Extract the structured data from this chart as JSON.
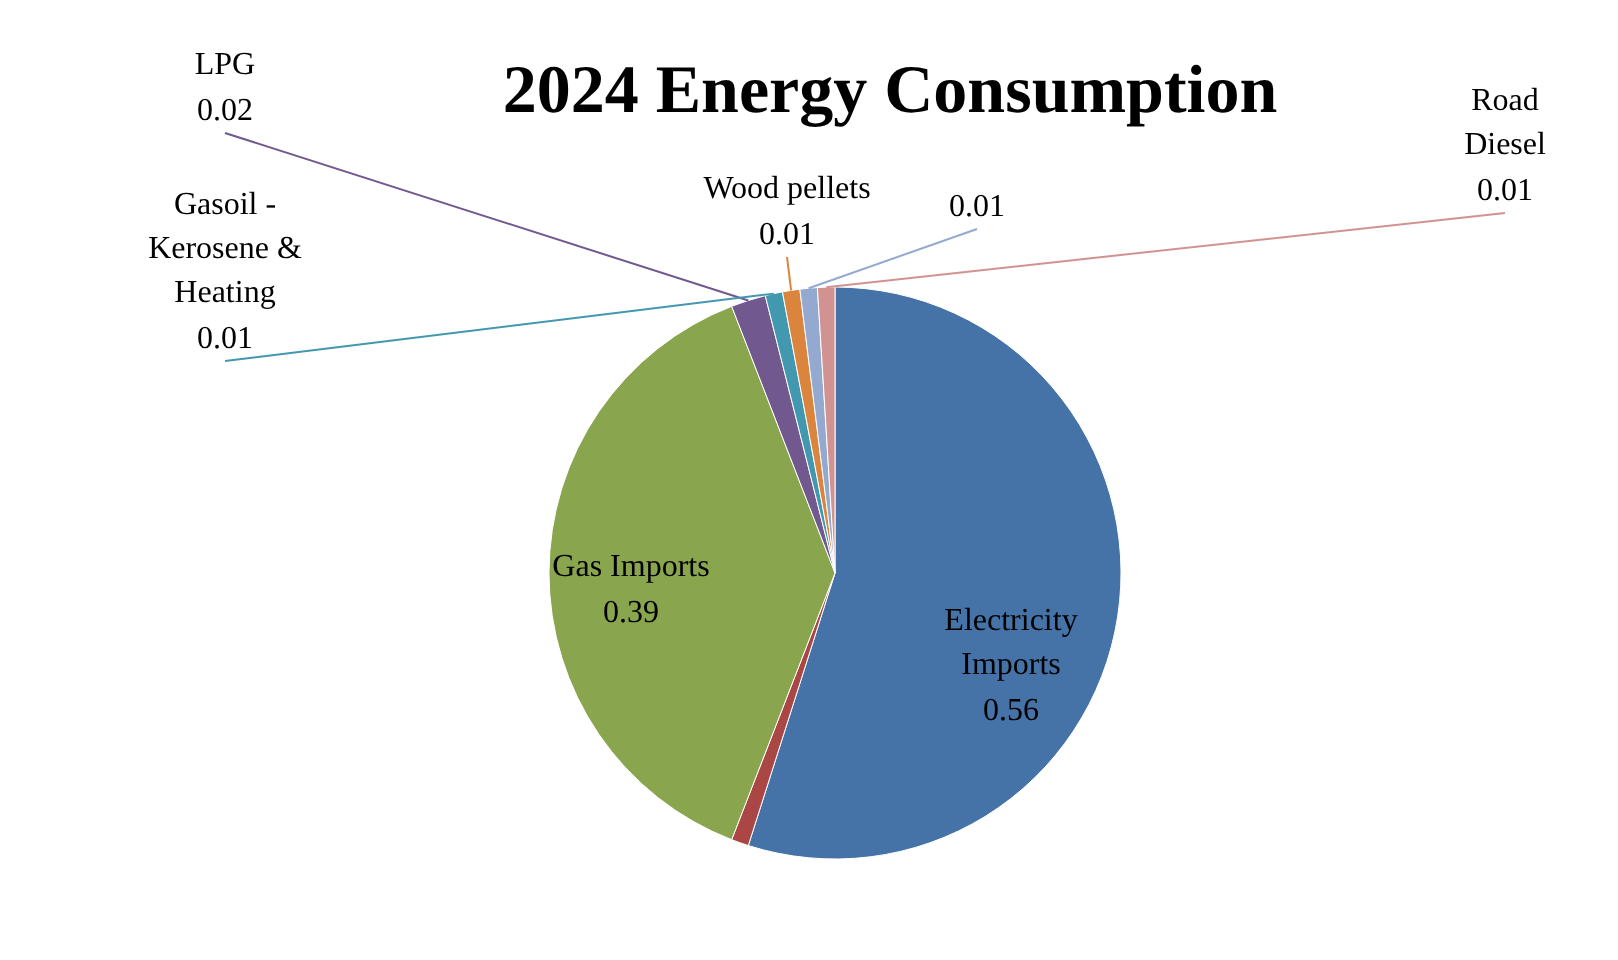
{
  "chart_data": {
    "type": "pie",
    "title": "2024 Energy Consumption",
    "categories": [
      "Electricity Imports",
      null,
      "Gas Imports",
      "LPG",
      "Gasoil - Kerosene & Heating",
      "Wood pellets",
      null,
      "Road Diesel"
    ],
    "values": [
      0.56,
      0.01,
      0.39,
      0.02,
      0.01,
      0.01,
      0.01,
      0.01
    ],
    "colors": [
      "#4572a7",
      "#aa4643",
      "#89a54e",
      "#71588f",
      "#4198af",
      "#db843d",
      "#93a9cf",
      "#d19392"
    ],
    "value_labels": [
      "0.56",
      null,
      "0.39",
      "0.02",
      "0.01",
      "0.01",
      "0.01",
      "0.01"
    ]
  }
}
